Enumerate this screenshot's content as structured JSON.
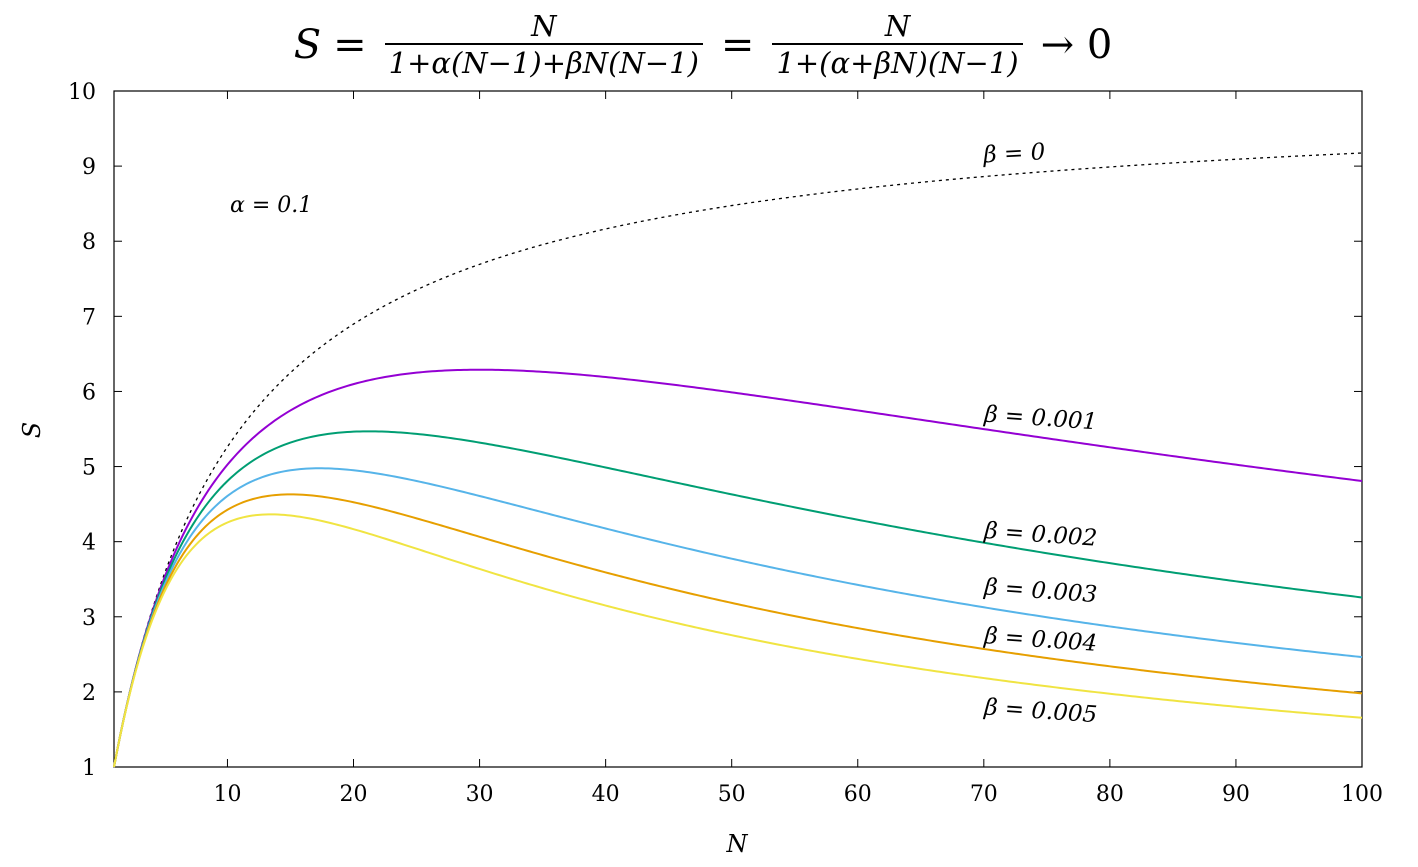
{
  "chart_data": {
    "type": "line",
    "title": {
      "lhs": "S",
      "eq1": "=",
      "frac1_num": "N",
      "frac1_den": "1+α(N−1)+βN(N−1)",
      "eq2": "=",
      "frac2_num": "N",
      "frac2_den": "1+(α+βN)(N−1)",
      "tail": "→ 0"
    },
    "xlabel": "N",
    "ylabel": "S",
    "xlim": [
      1,
      100
    ],
    "ylim": [
      1,
      10
    ],
    "xticks": [
      10,
      20,
      30,
      40,
      50,
      60,
      70,
      80,
      90,
      100
    ],
    "yticks": [
      1,
      2,
      3,
      4,
      5,
      6,
      7,
      8,
      9,
      10
    ],
    "grid": false,
    "annotation": "α = 0.1",
    "alpha": 0.1,
    "x_sample": [
      1,
      2,
      3,
      4,
      5,
      6,
      8,
      10,
      12,
      15,
      20,
      25,
      30,
      40,
      50,
      60,
      70,
      80,
      90,
      100
    ],
    "series": [
      {
        "name": "β = 0",
        "beta": 0,
        "color": "#000000",
        "style": "dotted",
        "values": [
          1,
          1.82,
          2.5,
          3.08,
          3.57,
          4.0,
          4.71,
          5.26,
          5.71,
          6.25,
          6.9,
          7.35,
          7.69,
          8.16,
          8.47,
          8.7,
          8.86,
          8.99,
          9.09,
          9.17
        ]
      },
      {
        "name": "β = 0.001",
        "beta": 0.001,
        "color": "#9400d3",
        "style": "solid",
        "values": [
          1,
          1.82,
          2.49,
          3.05,
          3.52,
          3.92,
          4.57,
          5.05,
          5.41,
          5.8,
          6.15,
          6.27,
          6.28,
          6.14,
          5.92,
          5.67,
          5.44,
          5.21,
          5.0,
          4.81
        ]
      },
      {
        "name": "β = 0.002",
        "beta": 0.002,
        "color": "#009e73",
        "style": "solid",
        "values": [
          1,
          1.81,
          2.48,
          3.02,
          3.47,
          3.85,
          4.44,
          4.85,
          5.13,
          5.39,
          5.46,
          5.37,
          5.21,
          4.87,
          4.53,
          4.23,
          3.96,
          3.73,
          3.52,
          3.34
        ]
      },
      {
        "name": "β = 0.003",
        "beta": 0.003,
        "color": "#56b4e9",
        "style": "solid",
        "values": [
          1,
          1.81,
          2.46,
          3.0,
          3.43,
          3.79,
          4.32,
          4.66,
          4.87,
          5.0,
          4.93,
          4.72,
          4.5,
          4.06,
          3.69,
          3.38,
          3.12,
          2.91,
          2.72,
          2.56
        ]
      },
      {
        "name": "β = 0.004",
        "beta": 0.004,
        "color": "#e69f00",
        "style": "solid",
        "values": [
          1,
          1.8,
          2.45,
          2.97,
          3.39,
          3.72,
          4.21,
          4.49,
          4.64,
          4.67,
          4.49,
          4.21,
          3.95,
          3.48,
          3.12,
          2.82,
          2.59,
          2.39,
          2.23,
          2.09
        ]
      },
      {
        "name": "β = 0.005",
        "beta": 0.005,
        "color": "#f0e442",
        "style": "solid",
        "values": [
          1,
          1.8,
          2.44,
          2.95,
          3.35,
          3.67,
          4.11,
          4.35,
          4.44,
          4.39,
          4.12,
          3.8,
          3.52,
          3.05,
          2.7,
          2.43,
          2.22,
          2.04,
          1.89,
          1.77
        ]
      }
    ],
    "series_labels": [
      {
        "text": "β = 0",
        "x": 70,
        "y": 9.05
      },
      {
        "text": "β = 0.001",
        "x": 70,
        "y": 5.6
      },
      {
        "text": "β = 0.002",
        "x": 70,
        "y": 4.05
      },
      {
        "text": "β = 0.003",
        "x": 70,
        "y": 3.3
      },
      {
        "text": "β = 0.004",
        "x": 70,
        "y": 2.65
      },
      {
        "text": "β = 0.005",
        "x": 70,
        "y": 1.7
      }
    ]
  }
}
